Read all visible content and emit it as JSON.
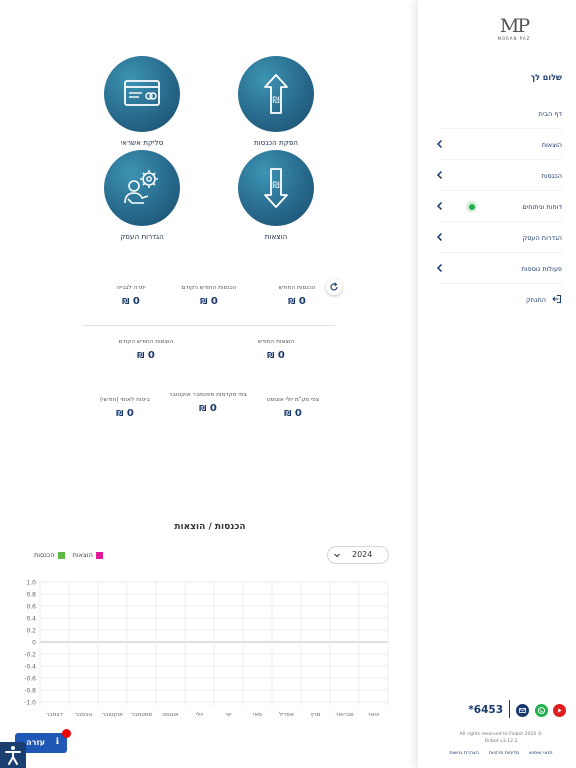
{
  "brand": {
    "logo_initials": "MP",
    "logo_name": "MORAN PAZ"
  },
  "sidebar": {
    "greeting": "שלום לך",
    "items": [
      {
        "label": "דף הבית",
        "chevron": false
      },
      {
        "label": "הוצאות",
        "chevron": true
      },
      {
        "label": "הכנסות",
        "chevron": true
      },
      {
        "label": "דוחות וניתוחים",
        "chevron": true,
        "active_dot": true
      },
      {
        "label": "הגדרות העסק",
        "chevron": true
      },
      {
        "label": "פעולות נוספות",
        "chevron": true
      }
    ],
    "logout": "התנתק",
    "footer": {
      "phone": "*6453",
      "rights_line1": "All rights reserved to Finbot 2020 ©",
      "rights_line2": "Finbot v3.12.2",
      "links": [
        "תנאי שימוש",
        "מדיניות פרטיות",
        "הצהרת נגישות"
      ],
      "icons": [
        "youtube-icon",
        "whatsapp-icon",
        "email-icon"
      ],
      "colors": {
        "youtube": "#e01e1e",
        "whatsapp": "#22b14c",
        "email": "#1a3a6e"
      }
    }
  },
  "tiles": [
    {
      "label": "הפקת הכנסות",
      "icon": "income-up-arrow-icon"
    },
    {
      "label": "סליקת אשראי",
      "icon": "credit-card-icon"
    },
    {
      "label": "הוצאות",
      "icon": "expense-down-arrow-icon"
    },
    {
      "label": "הגדרות העסק",
      "icon": "business-settings-icon"
    }
  ],
  "stats": {
    "currency": "₪",
    "income_this_month": {
      "label": "הכנסות החודש",
      "value": "0"
    },
    "income_last_month": {
      "label": "הכנסות החודש הקודם",
      "value": "0"
    },
    "balance_to_collect": {
      "label": "יתרה לגבייה",
      "value": "0"
    },
    "expenses_this_month": {
      "label": "הוצאות החודש",
      "value": "0"
    },
    "expenses_last_month": {
      "label": "הוצאות החודש הקודם",
      "value": "0"
    },
    "vat_forecast": {
      "label": "צפי מע\"מ יולי אוגוסט",
      "value": "0"
    },
    "advance_tax_forecast": {
      "label": "צפי מקדמות ספטמבר אוקטובר",
      "value": "0"
    },
    "national_insurance": {
      "label": "ביטוח לאומי (חודשי)",
      "value": "0"
    }
  },
  "chart": {
    "year_select": "2024",
    "legend_expenses": "הוצאות",
    "legend_income": "הכנסות"
  },
  "chart_data": {
    "type": "bar",
    "title": "הכנסות / הוצאות",
    "categories": [
      "ינואר",
      "פברואר",
      "מרץ",
      "אפריל",
      "מאי",
      "יוני",
      "יולי",
      "אוגוסט",
      "ספטמבר",
      "אוקטובר",
      "נובמבר",
      "דצמבר"
    ],
    "series": [
      {
        "name": "הוצאות",
        "color": "#e0189a",
        "values": [
          0,
          0,
          0,
          0,
          0,
          0,
          0,
          0,
          0,
          0,
          0,
          0
        ]
      },
      {
        "name": "הכנסות",
        "color": "#5dbb46",
        "values": [
          0,
          0,
          0,
          0,
          0,
          0,
          0,
          0,
          0,
          0,
          0,
          0
        ]
      }
    ],
    "ylim": [
      -1.0,
      1.0
    ],
    "yticks": [
      "1.0",
      "0.8",
      "0.6",
      "0.4",
      "0.2",
      "0",
      "-0.2",
      "-0.4",
      "-0.6",
      "-0.8",
      "-1.0"
    ],
    "grid": true,
    "legend_position": "top-left"
  },
  "help_widget": {
    "label": "עזרה",
    "accessibility_icon": "accessibility-icon"
  }
}
